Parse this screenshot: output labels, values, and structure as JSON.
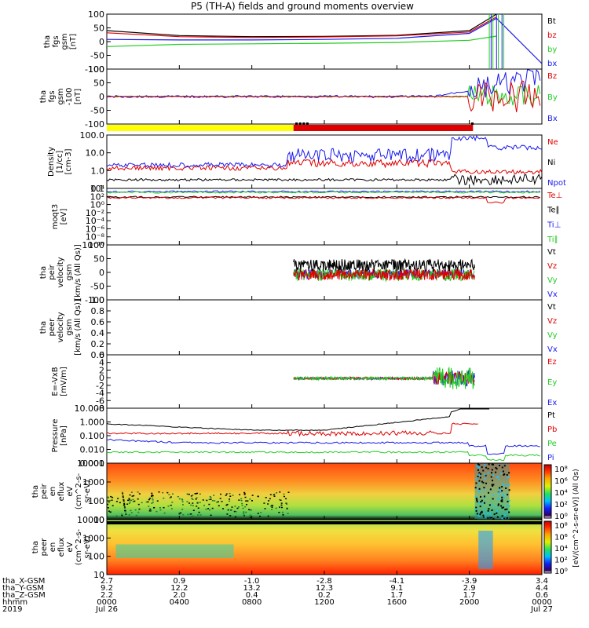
{
  "title": "P5 (TH-A) fields and ground moments overview",
  "colors": {
    "black": "#000000",
    "red": "#e00000",
    "green": "#22cc22",
    "blue": "#1a1aee",
    "yellow": "#ffff00"
  },
  "chart_data": [
    {
      "type": "line",
      "id": "fgs_gsm",
      "ylabel": [
        "tha",
        "fgs",
        "gsm",
        "[nT]"
      ],
      "ylim": [
        -100,
        100
      ],
      "yticks": [
        100,
        50,
        0,
        -50,
        -100
      ],
      "legend": [
        {
          "name": "Bt",
          "color": "black"
        },
        {
          "name": "bz",
          "color": "red"
        },
        {
          "name": "by",
          "color": "green"
        },
        {
          "name": "bx",
          "color": "blue"
        }
      ],
      "x_hours": [
        0,
        4,
        8,
        12,
        16,
        20,
        21.5,
        24
      ],
      "series": [
        {
          "name": "Bt",
          "values": [
            40,
            22,
            18,
            19,
            23,
            40,
            100,
            null
          ]
        },
        {
          "name": "bz",
          "values": [
            32,
            18,
            15,
            17,
            21,
            35,
            90,
            null
          ]
        },
        {
          "name": "by",
          "values": [
            -18,
            -10,
            -8,
            -6,
            -3,
            5,
            20,
            null
          ]
        },
        {
          "name": "bx",
          "values": [
            8,
            6,
            6,
            8,
            12,
            30,
            85,
            -80
          ]
        }
      ]
    },
    {
      "type": "line",
      "id": "fgs_gsm_dc",
      "ylabel": [
        "tha",
        "fgs",
        "gsm",
        "-100",
        "[nT]"
      ],
      "ylim": [
        -120,
        120
      ],
      "yticks": [
        100,
        50,
        0,
        -50,
        -100
      ],
      "legend": [
        {
          "name": "Bz",
          "color": "red"
        },
        {
          "name": "By",
          "color": "green"
        },
        {
          "name": "Bx",
          "color": "blue"
        }
      ]
    },
    {
      "type": "line",
      "id": "density",
      "ylabel": [
        "Density",
        "[1/cc]",
        "[cm-3]"
      ],
      "scale": "log",
      "yticks": [
        "100.0",
        "10.0",
        "1.0",
        "0.1"
      ],
      "legend": [
        {
          "name": "Ne",
          "color": "red"
        },
        {
          "name": "Ni",
          "color": "black"
        },
        {
          "name": "Npot",
          "color": "blue"
        }
      ]
    },
    {
      "type": "line",
      "id": "temperature",
      "ylabel": [
        "moqt3",
        "[eV]"
      ],
      "scale": "log",
      "yticks": [
        "10⁴",
        "10²",
        "10⁰",
        "10⁻²",
        "10⁻⁴",
        "10⁻⁶",
        "10⁻⁸",
        "10⁻¹⁰"
      ],
      "legend": [
        {
          "name": "Te⊥",
          "color": "red"
        },
        {
          "name": "Te∥",
          "color": "black"
        },
        {
          "name": "Ti⊥",
          "color": "blue"
        },
        {
          "name": "Ti∥",
          "color": "green"
        }
      ]
    },
    {
      "type": "line",
      "id": "peir_velocity",
      "ylabel": [
        "tha",
        "peir",
        "velocity",
        "gsm",
        "[km/s (All Qs)]"
      ],
      "ylim": [
        -100,
        100
      ],
      "yticks": [
        100,
        50,
        0,
        -50,
        -100
      ],
      "legend": [
        {
          "name": "Vt",
          "color": "black"
        },
        {
          "name": "Vz",
          "color": "red"
        },
        {
          "name": "Vy",
          "color": "green"
        },
        {
          "name": "Vx",
          "color": "blue"
        }
      ]
    },
    {
      "type": "line",
      "id": "peer_velocity",
      "ylabel": [
        "tha",
        "peer",
        "velocity",
        "gsm",
        "[km/s (All Qs)]"
      ],
      "ylim": [
        0,
        1
      ],
      "yticks": [
        "1.0",
        "0.8",
        "0.6",
        "0.4",
        "0.2",
        "0.0"
      ],
      "legend": [
        {
          "name": "Vt",
          "color": "black"
        },
        {
          "name": "Vz",
          "color": "red"
        },
        {
          "name": "Vy",
          "color": "green"
        },
        {
          "name": "Vx",
          "color": "blue"
        }
      ]
    },
    {
      "type": "line",
      "id": "efield",
      "ylabel": [
        "E=-VxB",
        "[mV/m]"
      ],
      "ylim": [
        -8,
        8
      ],
      "yticks": [
        6,
        4,
        2,
        0,
        -2,
        -4,
        -6,
        -8
      ],
      "legend": [
        {
          "name": "Ez",
          "color": "red"
        },
        {
          "name": "Ey",
          "color": "green"
        },
        {
          "name": "Ex",
          "color": "blue"
        }
      ]
    },
    {
      "type": "line",
      "id": "pressure",
      "ylabel": [
        "Pressure",
        "[nPa]"
      ],
      "scale": "log",
      "yticks": [
        "10.000",
        "1.000",
        "0.100",
        "0.010",
        "0.001"
      ],
      "legend": [
        {
          "name": "Pt",
          "color": "black"
        },
        {
          "name": "Pb",
          "color": "red"
        },
        {
          "name": "Pe",
          "color": "green"
        },
        {
          "name": "Pi",
          "color": "blue"
        }
      ]
    },
    {
      "type": "heatmap",
      "id": "peir_en_eflux",
      "ylabel": [
        "tha",
        "peir",
        "en",
        "eflux",
        "eV",
        "(cm^2-s-",
        "sr-eV)"
      ],
      "yticks": [
        "10000",
        "1000",
        "100",
        "10"
      ]
    },
    {
      "type": "heatmap",
      "id": "peer_en_eflux",
      "ylabel": [
        "tha",
        "peer",
        "en",
        "eflux",
        "eV",
        "(cm^2-s-",
        "sr-eV)"
      ],
      "yticks": [
        "10000",
        "1000",
        "100",
        "10"
      ]
    }
  ],
  "colorbar": {
    "label": "[eV/(cm^2-s-sr-eV)] (All Qs)",
    "label_lower": "[eV/(cm^2-s-sr-eV)]",
    "ticks": [
      "10⁸",
      "10⁶",
      "10⁴",
      "10²",
      "10⁰"
    ]
  },
  "ephemeris": {
    "rows": [
      {
        "label": "tha_X-GSM",
        "values": [
          "2.7",
          "0.9",
          "-1.0",
          "-2.8",
          "-4.1",
          "-3.9",
          "3.4"
        ]
      },
      {
        "label": "tha_Y-GSM",
        "values": [
          "9.2",
          "12.2",
          "13.2",
          "12.3",
          "9.1",
          "2.9",
          "4.4"
        ]
      },
      {
        "label": "tha_Z-GSM",
        "values": [
          "2.2",
          "2.0",
          "0.4",
          "0.2",
          "1.7",
          "1.7",
          "0.6"
        ]
      },
      {
        "label": "hhmm",
        "values": [
          "0000",
          "0400",
          "0800",
          "1200",
          "1600",
          "2000",
          "0000"
        ]
      }
    ],
    "year": "2019",
    "date_start": "Jul 26",
    "date_end": "Jul 27"
  }
}
